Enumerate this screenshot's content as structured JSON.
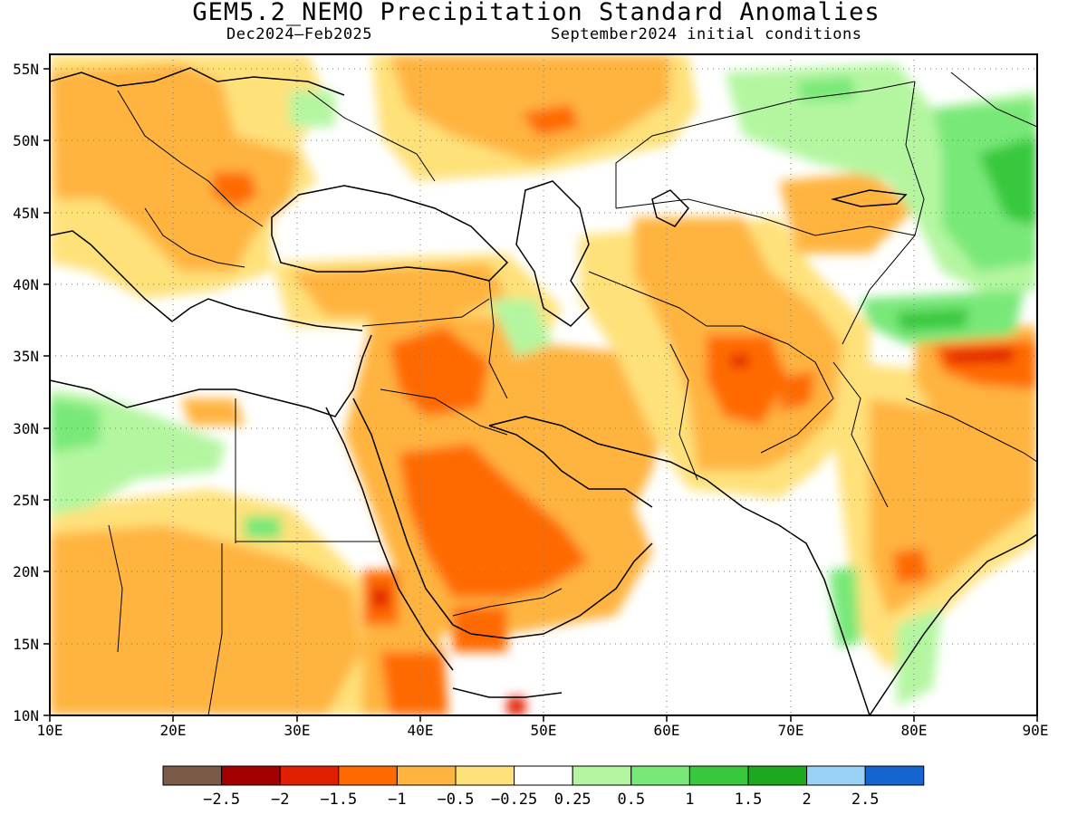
{
  "title": "GEM5.2_NEMO Precipitation Standard Anomalies",
  "subtitle_left": "Dec2024–Feb2025",
  "subtitle_right": "September2024 initial conditions",
  "map": {
    "lon_range": [
      10,
      90
    ],
    "lat_range": [
      10,
      56
    ],
    "lon_ticks": [
      "10E",
      "20E",
      "30E",
      "40E",
      "50E",
      "60E",
      "70E",
      "80E",
      "90E"
    ],
    "lat_ticks": [
      "10N",
      "15N",
      "20N",
      "25N",
      "30N",
      "35N",
      "40N",
      "45N",
      "50N",
      "55N"
    ],
    "gridlines": "dotted",
    "background_color": "#ffffff"
  },
  "colorbar": {
    "colors": [
      "#7b5a48",
      "#a30000",
      "#e01e00",
      "#ff6a00",
      "#ffb440",
      "#ffe17a",
      "#ffffff",
      "#b4f6a0",
      "#78e878",
      "#37c83c",
      "#1ea81e",
      "#9ad2f5",
      "#1565d1"
    ],
    "labels": [
      "−2.5",
      "−2",
      "−1.5",
      "−1",
      "−0.5",
      "−0.25",
      "0.25",
      "0.5",
      "1",
      "1.5",
      "2",
      "2.5"
    ]
  },
  "anomaly_regions": [
    {
      "level": "-0.5",
      "color": "#ffb440",
      "area": "Eastern Europe / Ukraine"
    },
    {
      "level": "-0.5",
      "color": "#ffb440",
      "area": "Arabian Peninsula"
    },
    {
      "level": "-1",
      "color": "#ff6a00",
      "area": "Central Saudi Arabia"
    },
    {
      "level": "-1",
      "color": "#ff6a00",
      "area": "Iraq / Syria"
    },
    {
      "level": "-1.5",
      "color": "#e01e00",
      "area": "Eastern Iran / Afghanistan"
    },
    {
      "level": "-1.5",
      "color": "#e01e00",
      "area": "Sudan / Eritrea coast"
    },
    {
      "level": "-1",
      "color": "#ff6a00",
      "area": "Romania / Carpathians"
    },
    {
      "level": "-1",
      "color": "#ff6a00",
      "area": "Central India"
    },
    {
      "level": "-1.5",
      "color": "#e01e00",
      "area": "Tibet"
    },
    {
      "level": "0.5",
      "color": "#b4f6a0",
      "area": "Kazakhstan"
    },
    {
      "level": "1",
      "color": "#78e878",
      "area": "Tarim Basin / Western China"
    },
    {
      "level": "1.5",
      "color": "#37c83c",
      "area": "Mongolia / NW China"
    },
    {
      "level": "0.5",
      "color": "#b4f6a0",
      "area": "Libya / Egypt desert"
    },
    {
      "level": "1",
      "color": "#78e878",
      "area": "Southwest India"
    }
  ]
}
